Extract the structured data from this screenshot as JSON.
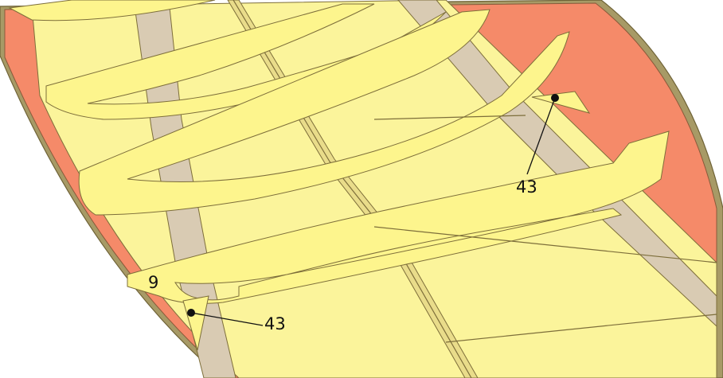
{
  "diagram": {
    "callouts": [
      {
        "id": "callout-43-top",
        "label": "43"
      },
      {
        "id": "callout-9",
        "label": "9"
      },
      {
        "id": "callout-43-bottom",
        "label": "43"
      }
    ]
  },
  "colors": {
    "panel_yellow": "#fdf58d",
    "floor_yellow": "#fbf49b",
    "stringer_grey": "#d9cbb3",
    "hull_orange": "#f58a69",
    "rim_brown": "#a79a66",
    "outline": "#7d6e3a",
    "ink": "#111111"
  }
}
